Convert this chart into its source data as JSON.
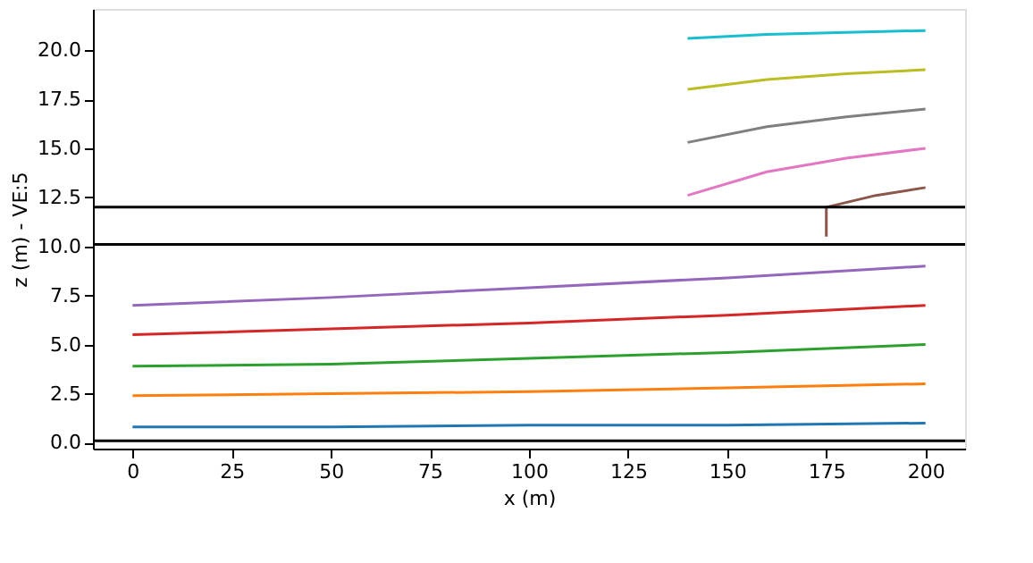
{
  "chart_data": {
    "type": "line",
    "xlabel": "x (m)",
    "ylabel": "z (m) - VE:5",
    "xlim": [
      -10,
      210
    ],
    "xticks": [
      0,
      25,
      50,
      75,
      100,
      125,
      150,
      175,
      200
    ],
    "ylim": [
      -0.3,
      22.1
    ],
    "yticks": [
      {
        "value": 0,
        "label": "0.0"
      },
      2.5,
      {
        "value": 5,
        "label": "5.0"
      },
      7.5,
      {
        "value": 10,
        "label": "10.0"
      },
      12.5,
      {
        "value": 15,
        "label": "15.0"
      },
      17.5,
      {
        "value": 20,
        "label": "20.0"
      }
    ],
    "grid": false,
    "legend": false,
    "line_style": "solid",
    "marker": "none",
    "series": [
      {
        "color": "#1f77b4",
        "x": [
          0,
          50,
          100,
          150,
          200
        ],
        "values": [
          0.8,
          0.8,
          0.9,
          0.9,
          1.0
        ]
      },
      {
        "color": "#ff7f0e",
        "x": [
          0,
          50,
          100,
          150,
          200
        ],
        "values": [
          2.4,
          2.5,
          2.6,
          2.8,
          3.0
        ]
      },
      {
        "color": "#2ca02c",
        "x": [
          0,
          50,
          100,
          150,
          200
        ],
        "values": [
          3.9,
          4.0,
          4.3,
          4.6,
          5.0
        ]
      },
      {
        "color": "#d62728",
        "x": [
          0,
          50,
          100,
          150,
          200
        ],
        "values": [
          5.5,
          5.8,
          6.1,
          6.5,
          7.0
        ]
      },
      {
        "color": "#9467bd",
        "x": [
          0,
          50,
          100,
          150,
          200
        ],
        "values": [
          7.0,
          7.4,
          7.9,
          8.4,
          9.0
        ]
      },
      {
        "color": "#8c564b",
        "x": [
          175,
          175,
          187.5,
          200
        ],
        "values": [
          10.5,
          12.0,
          12.6,
          13.0
        ]
      },
      {
        "color": "#e377c2",
        "x": [
          140,
          160,
          180,
          200
        ],
        "values": [
          12.6,
          13.8,
          14.5,
          15.0
        ]
      },
      {
        "color": "#7f7f7f",
        "x": [
          140,
          160,
          180,
          200
        ],
        "values": [
          15.3,
          16.1,
          16.6,
          17.0
        ]
      },
      {
        "color": "#bcbd22",
        "x": [
          140,
          160,
          180,
          200
        ],
        "values": [
          18.0,
          18.5,
          18.8,
          19.0
        ]
      },
      {
        "color": "#17becf",
        "x": [
          140,
          160,
          180,
          200
        ],
        "values": [
          20.6,
          20.8,
          20.9,
          21.0
        ]
      }
    ],
    "ref_lines": [
      {
        "axis": "y",
        "value": 0.1,
        "color": "#000000"
      },
      {
        "axis": "y",
        "value": 10.1,
        "color": "#000000"
      },
      {
        "axis": "y",
        "value": 12.0,
        "color": "#000000"
      }
    ]
  }
}
